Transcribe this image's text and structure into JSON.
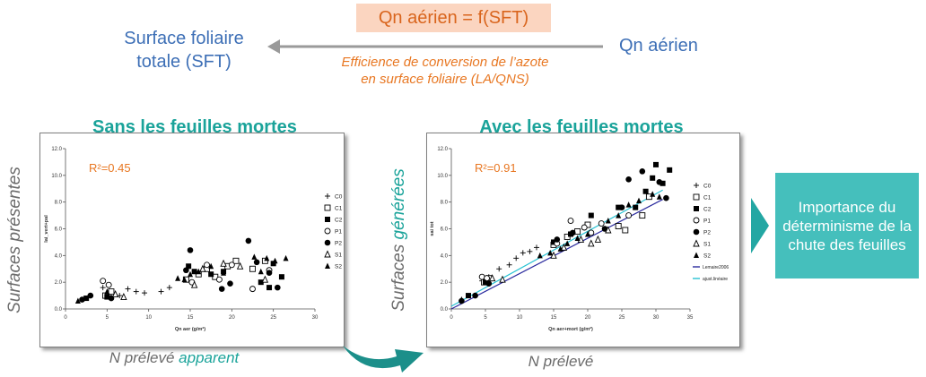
{
  "header": {
    "equation": "Qn aérien = f(SFT)",
    "left_label": "Surface foliaire\ntotale (SFT)",
    "right_label": "Qn aérien",
    "efficiency": "Efficience de conversion de l’azote\nen surface foliaire (LA/QNS)"
  },
  "panels": {
    "left": {
      "title": "Sans les feuilles mortes",
      "side_label": "Surfaces présentes",
      "below_label_prefix": "N prélevé ",
      "below_label_highlight": "apparent"
    },
    "right": {
      "title": "Avec les feuilles mortes",
      "side_label_prefix": "Surfaces ",
      "side_label_highlight": "générées",
      "below_label": "N prélevé"
    }
  },
  "conclusion": "Importance du déterminisme de la chute des feuilles",
  "colors": {
    "blue": "#3d6fb6",
    "orange": "#e87722",
    "teal": "#1aa39a",
    "box": "#45bfbc",
    "arrow_bg": "#fbd5c0"
  },
  "chart_data": [
    {
      "type": "scatter",
      "xlabel": "Qn aer (g/m²)",
      "ylabel": "lai_vert+pal",
      "xlim": [
        0,
        30
      ],
      "ylim": [
        0,
        12
      ],
      "xticks": [
        "0",
        "5",
        "10",
        "15",
        "20",
        "25",
        "30"
      ],
      "yticks": [
        "0.0",
        "2.0",
        "4.0",
        "6.0",
        "8.0",
        "10.0",
        "12.0"
      ],
      "annotation": "R²=0.45",
      "legend_position": "right",
      "series": [
        {
          "name": "C0",
          "marker": "plus",
          "points": [
            [
              4.5,
              1.6
            ],
            [
              5.5,
              1.2
            ],
            [
              6.5,
              1.0
            ],
            [
              7.5,
              1.5
            ],
            [
              8.5,
              1.3
            ],
            [
              9.5,
              1.2
            ],
            [
              11.5,
              1.3
            ],
            [
              12.5,
              1.6
            ]
          ]
        },
        {
          "name": "C1",
          "marker": "square-open",
          "points": [
            [
              4.8,
              1.0
            ],
            [
              5.5,
              1.3
            ],
            [
              14.5,
              2.2
            ],
            [
              16,
              2.6
            ],
            [
              17,
              3.0
            ],
            [
              18,
              2.4
            ],
            [
              19.5,
              3.2
            ],
            [
              20.5,
              3.6
            ],
            [
              22.5,
              3.0
            ],
            [
              24,
              3.6
            ]
          ]
        },
        {
          "name": "C2",
          "marker": "square",
          "points": [
            [
              2.5,
              0.8
            ],
            [
              5,
              0.9
            ],
            [
              14.8,
              3.2
            ],
            [
              15.5,
              2.8
            ],
            [
              17.5,
              2.6
            ],
            [
              19,
              2.8
            ],
            [
              23.5,
              2.0
            ],
            [
              24.5,
              1.6
            ],
            [
              25,
              3.4
            ],
            [
              26,
              2.4
            ]
          ]
        },
        {
          "name": "P1",
          "marker": "circle-open",
          "points": [
            [
              4.5,
              2.1
            ],
            [
              5.2,
              1.8
            ],
            [
              15.2,
              2.0
            ],
            [
              17,
              3.3
            ],
            [
              18.5,
              2.2
            ],
            [
              20,
              3.3
            ],
            [
              22.5,
              1.5
            ],
            [
              24.5,
              2.9
            ]
          ]
        },
        {
          "name": "P2",
          "marker": "circle",
          "points": [
            [
              2,
              0.7
            ],
            [
              3,
              1.0
            ],
            [
              5.5,
              0.8
            ],
            [
              14.5,
              2.9
            ],
            [
              15,
              4.4
            ],
            [
              18.8,
              1.5
            ],
            [
              19.8,
              1.9
            ],
            [
              22,
              5.1
            ],
            [
              23,
              3.5
            ],
            [
              24.5,
              2.7
            ],
            [
              25.5,
              1.6
            ]
          ]
        },
        {
          "name": "S1",
          "marker": "triangle-open",
          "points": [
            [
              6,
              1.1
            ],
            [
              7,
              0.9
            ],
            [
              15.5,
              1.8
            ],
            [
              16.5,
              3.0
            ],
            [
              19,
              3.4
            ],
            [
              21,
              3.2
            ],
            [
              24,
              2.2
            ]
          ]
        },
        {
          "name": "S2",
          "marker": "triangle",
          "points": [
            [
              1.5,
              0.6
            ],
            [
              5,
              1.3
            ],
            [
              13.5,
              2.3
            ],
            [
              14.3,
              2.2
            ],
            [
              15,
              2.6
            ],
            [
              16,
              2.8
            ],
            [
              17.5,
              3.2
            ],
            [
              19,
              2.7
            ],
            [
              22.7,
              3.9
            ],
            [
              23.5,
              2.8
            ],
            [
              24.2,
              3.8
            ],
            [
              25.2,
              3.6
            ],
            [
              26.5,
              3.8
            ]
          ]
        }
      ]
    },
    {
      "type": "scatter",
      "xlabel": "Qn aer+mort (g/m²)",
      "ylabel": "sai tot",
      "xlim": [
        0,
        35
      ],
      "ylim": [
        0,
        12
      ],
      "xticks": [
        "0",
        "5",
        "10",
        "15",
        "20",
        "25",
        "30",
        "35"
      ],
      "yticks": [
        "0.0",
        "2.0",
        "4.0",
        "6.0",
        "8.0",
        "10.0",
        "12.0"
      ],
      "annotation": "R²=0.91",
      "legend_position": "right",
      "series": [
        {
          "name": "C0",
          "marker": "plus",
          "points": [
            [
              4.5,
              2.1
            ],
            [
              5.5,
              2.4
            ],
            [
              7,
              3.0
            ],
            [
              8.5,
              3.3
            ],
            [
              9.5,
              3.8
            ],
            [
              10.5,
              4.2
            ],
            [
              11.5,
              4.3
            ],
            [
              12.5,
              4.6
            ]
          ]
        },
        {
          "name": "C1",
          "marker": "square-open",
          "points": [
            [
              4.8,
              2.0
            ],
            [
              5.5,
              2.3
            ],
            [
              15,
              4.8
            ],
            [
              17,
              5.4
            ],
            [
              18.5,
              5.8
            ],
            [
              20,
              6.3
            ],
            [
              24.5,
              6.2
            ],
            [
              25.5,
              5.9
            ],
            [
              28,
              7.0
            ],
            [
              29,
              8.4
            ]
          ]
        },
        {
          "name": "C2",
          "marker": "square",
          "points": [
            [
              2.5,
              1.0
            ],
            [
              5,
              2.0
            ],
            [
              15,
              5.0
            ],
            [
              17.5,
              5.6
            ],
            [
              20.5,
              7.0
            ],
            [
              24.5,
              7.6
            ],
            [
              27,
              7.6
            ],
            [
              28.5,
              8.8
            ],
            [
              29.5,
              9.8
            ],
            [
              30,
              10.8
            ],
            [
              31,
              9.4
            ],
            [
              32,
              10.4
            ]
          ]
        },
        {
          "name": "P1",
          "marker": "circle-open",
          "points": [
            [
              4.5,
              2.4
            ],
            [
              5.2,
              2.3
            ],
            [
              15.5,
              4.9
            ],
            [
              17.5,
              6.6
            ],
            [
              19.5,
              6.1
            ],
            [
              20.5,
              5.7
            ],
            [
              22,
              6.4
            ],
            [
              26,
              7.0
            ]
          ]
        },
        {
          "name": "P2",
          "marker": "circle",
          "points": [
            [
              1.5,
              0.6
            ],
            [
              3.5,
              1.0
            ],
            [
              5.5,
              1.9
            ],
            [
              15.5,
              5.2
            ],
            [
              17.8,
              5.7
            ],
            [
              22.5,
              6.0
            ],
            [
              25,
              7.6
            ],
            [
              26,
              9.7
            ],
            [
              28,
              10.3
            ],
            [
              30.5,
              9.5
            ],
            [
              31.5,
              8.3
            ]
          ]
        },
        {
          "name": "S1",
          "marker": "triangle-open",
          "points": [
            [
              6,
              2.3
            ],
            [
              7.5,
              2.2
            ],
            [
              15,
              4.0
            ],
            [
              16.5,
              4.6
            ],
            [
              19,
              5.2
            ],
            [
              20.5,
              4.9
            ],
            [
              21.5,
              5.2
            ],
            [
              23,
              5.9
            ]
          ]
        },
        {
          "name": "S2",
          "marker": "triangle",
          "points": [
            [
              1.5,
              0.7
            ],
            [
              5,
              2.0
            ],
            [
              13,
              4.0
            ],
            [
              14.5,
              4.2
            ],
            [
              16,
              4.5
            ],
            [
              17,
              4.9
            ],
            [
              18.5,
              5.3
            ],
            [
              20,
              5.6
            ],
            [
              23,
              6.6
            ],
            [
              24.5,
              7.0
            ],
            [
              26,
              7.8
            ],
            [
              27.5,
              8.1
            ],
            [
              29.5,
              8.6
            ],
            [
              30.5,
              8.4
            ]
          ]
        }
      ],
      "lines": [
        {
          "name": "Lemaire2006",
          "color": "#2b2b9e",
          "from": [
            0,
            0
          ],
          "to": [
            31,
            8.2
          ]
        },
        {
          "name": "ajust.linéaire",
          "color": "#27c2d3",
          "from": [
            0,
            0.2
          ],
          "to": [
            31,
            8.9
          ]
        }
      ]
    }
  ]
}
